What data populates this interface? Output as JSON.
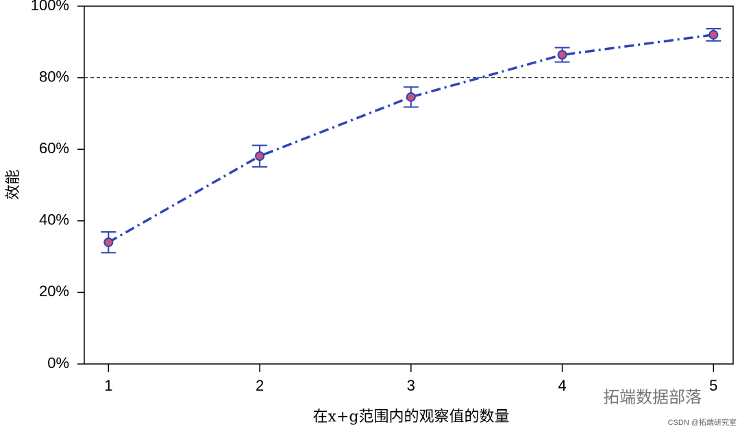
{
  "chart_data": {
    "type": "line",
    "x_label": "在x+g范围内的观察值的数量",
    "y_label": "效能",
    "x": [
      1,
      2,
      3,
      4,
      5
    ],
    "series": [
      {
        "color": "#2e45b8",
        "marker_color": "#c8527e",
        "values": [
          34,
          58.1,
          74.6,
          86.4,
          92
        ],
        "errors": [
          2.9,
          3,
          2.8,
          2,
          1.7
        ]
      }
    ],
    "xlim": [
      0.84,
      5.13
    ],
    "xticks": [
      1,
      2,
      3,
      4,
      5
    ],
    "ylim": [
      0,
      100
    ],
    "yticks": [
      {
        "value": 0,
        "label": "0%"
      },
      {
        "value": 20,
        "label": "20%"
      },
      {
        "value": 40,
        "label": "40%"
      },
      {
        "value": 60,
        "label": "60%"
      },
      {
        "value": 80,
        "label": "80%"
      },
      {
        "value": 100,
        "label": "100%"
      }
    ],
    "hline": 80,
    "annotations": [
      "拓端数据部落",
      "CSDN @拓端研究室"
    ]
  }
}
